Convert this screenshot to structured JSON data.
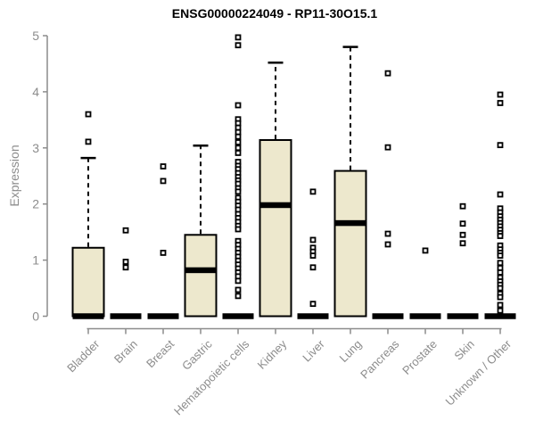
{
  "chart_data": {
    "type": "boxplot",
    "title": "ENSG00000224049 - RP11-30O15.1",
    "ylabel": "Expression",
    "xlabel": "",
    "ylim": [
      0,
      5
    ],
    "yticks": [
      0,
      1,
      2,
      3,
      4,
      5
    ],
    "grid": false,
    "legend": "none",
    "colors": {
      "box_fill": "#EDE8CD",
      "box_stroke": "#000000",
      "median": "#000000",
      "whisker": "#000000",
      "outlier": "#000000",
      "axis": "#8c8c8c",
      "label_text": "#8c8c8c",
      "title_text": "#000000",
      "background": "#ffffff"
    },
    "categories": [
      "Bladder",
      "Brain",
      "Breast",
      "Gastric",
      "Hematopoietic cells",
      "Kidney",
      "Liver",
      "Lung",
      "Pancreas",
      "Prostate",
      "Skin",
      "Unknown / Other"
    ],
    "boxes": [
      {
        "category": "Bladder",
        "q1": 0,
        "median": 0,
        "q3": 1.22,
        "whisker_low": 0,
        "whisker_high": 2.82,
        "outliers": [
          3.6,
          3.11
        ]
      },
      {
        "category": "Brain",
        "q1": 0,
        "median": 0,
        "q3": 0,
        "whisker_low": 0,
        "whisker_high": 0,
        "outliers": [
          1.53,
          0.97,
          0.87
        ]
      },
      {
        "category": "Breast",
        "q1": 0,
        "median": 0,
        "q3": 0,
        "whisker_low": 0,
        "whisker_high": 0,
        "outliers": [
          2.67,
          2.41,
          1.13
        ]
      },
      {
        "category": "Gastric",
        "q1": 0,
        "median": 0.82,
        "q3": 1.45,
        "whisker_low": 0,
        "whisker_high": 3.04,
        "outliers": []
      },
      {
        "category": "Hematopoietic cells",
        "q1": 0,
        "median": 0,
        "q3": 0,
        "whisker_low": 0,
        "whisker_high": 0,
        "outliers": [
          4.97,
          4.83,
          3.76,
          3.51,
          3.44,
          3.36,
          3.28,
          3.2,
          3.1,
          3.0,
          2.91,
          2.75,
          2.68,
          2.62,
          2.55,
          2.48,
          2.42,
          2.36,
          2.28,
          2.22,
          2.11,
          2.04,
          1.97,
          1.9,
          1.82,
          1.75,
          1.68,
          1.61,
          1.55,
          1.34,
          1.27,
          1.2,
          1.13,
          1.06,
          0.99,
          0.92,
          0.85,
          0.78,
          0.71,
          0.63,
          0.47,
          0.36
        ]
      },
      {
        "category": "Kidney",
        "q1": 0,
        "median": 1.98,
        "q3": 3.14,
        "whisker_low": 0,
        "whisker_high": 4.52,
        "outliers": []
      },
      {
        "category": "Liver",
        "q1": 0,
        "median": 0,
        "q3": 0,
        "whisker_low": 0,
        "whisker_high": 0,
        "outliers": [
          2.22,
          1.36,
          1.22,
          1.15,
          1.08,
          0.87,
          0.22
        ]
      },
      {
        "category": "Lung",
        "q1": 0,
        "median": 1.66,
        "q3": 2.59,
        "whisker_low": 0,
        "whisker_high": 4.8,
        "outliers": []
      },
      {
        "category": "Pancreas",
        "q1": 0,
        "median": 0,
        "q3": 0,
        "whisker_low": 0,
        "whisker_high": 0,
        "outliers": [
          4.33,
          3.01,
          1.47,
          1.28
        ]
      },
      {
        "category": "Prostate",
        "q1": 0,
        "median": 0,
        "q3": 0,
        "whisker_low": 0,
        "whisker_high": 0,
        "outliers": [
          1.17
        ]
      },
      {
        "category": "Skin",
        "q1": 0,
        "median": 0,
        "q3": 0,
        "whisker_low": 0,
        "whisker_high": 0,
        "outliers": [
          1.96,
          1.65,
          1.45,
          1.3
        ]
      },
      {
        "category": "Unknown / Other",
        "q1": 0,
        "median": 0,
        "q3": 0,
        "whisker_low": 0,
        "whisker_high": 0,
        "outliers": [
          3.95,
          3.8,
          3.05,
          2.17,
          1.92,
          1.85,
          1.78,
          1.72,
          1.66,
          1.6,
          1.54,
          1.48,
          1.43,
          1.26,
          1.19,
          1.13,
          1.08,
          0.95,
          0.86,
          0.78,
          0.69,
          0.62,
          0.56,
          0.5,
          0.4,
          0.34,
          0.2,
          0.1
        ]
      }
    ]
  }
}
